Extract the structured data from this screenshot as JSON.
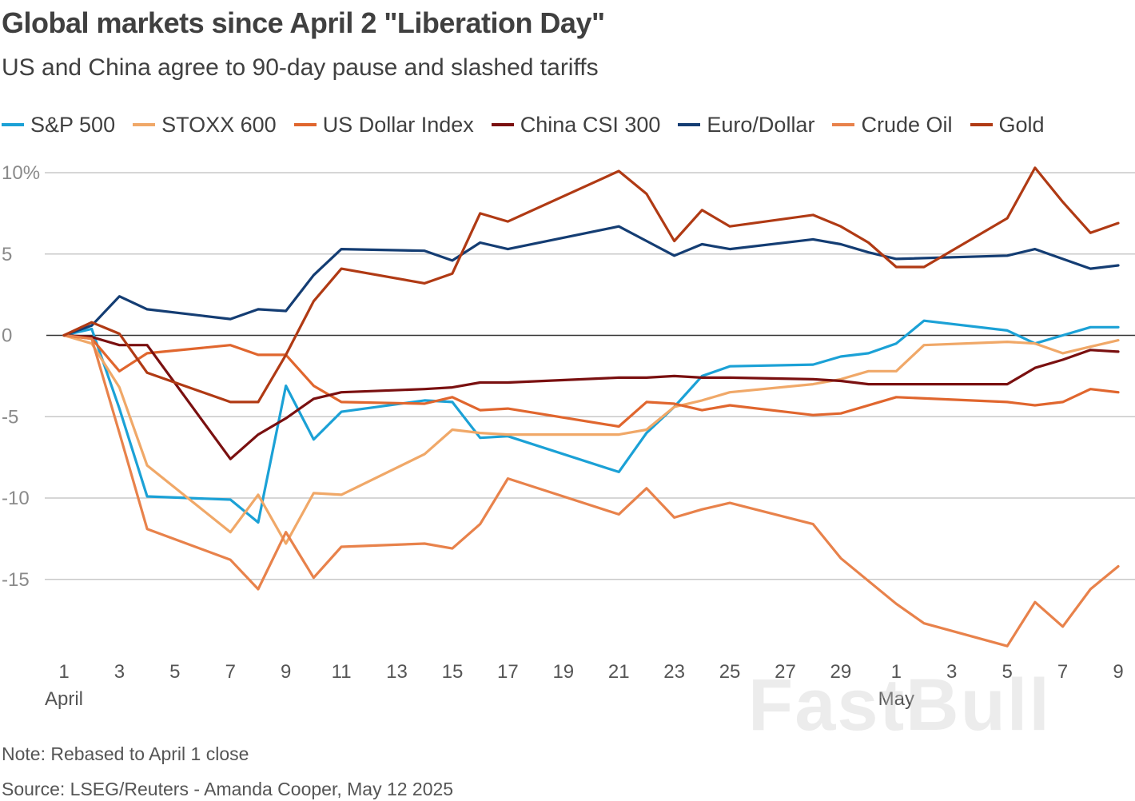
{
  "title": "Global markets since April 2 \"Liberation Day\"",
  "subtitle": "US and China agree to 90-day pause and slashed tariffs",
  "note": "Note: Rebased to April 1 close",
  "source": "Source: LSEG/Reuters - Amanda Cooper, May 12 2025",
  "watermark": "FastBull",
  "chart_data": {
    "type": "line",
    "title": "Global markets since April 2 \"Liberation Day\"",
    "subtitle": "US and China agree to 90-day pause and slashed tariffs",
    "xlabel": "",
    "ylabel": "",
    "ylim": [
      -20,
      10.5
    ],
    "xlim": [
      1,
      39
    ],
    "grid": true,
    "legend_position": "top",
    "y_ticks": [
      {
        "value": 10,
        "label": "10%"
      },
      {
        "value": 5,
        "label": "5"
      },
      {
        "value": 0,
        "label": "0"
      },
      {
        "value": -5,
        "label": "-5"
      },
      {
        "value": -10,
        "label": "-10"
      },
      {
        "value": -15,
        "label": "-15"
      }
    ],
    "x_ticks": [
      {
        "day": 1,
        "label": "1"
      },
      {
        "day": 3,
        "label": "3"
      },
      {
        "day": 5,
        "label": "5"
      },
      {
        "day": 7,
        "label": "7"
      },
      {
        "day": 9,
        "label": "9"
      },
      {
        "day": 11,
        "label": "11"
      },
      {
        "day": 13,
        "label": "13"
      },
      {
        "day": 15,
        "label": "15"
      },
      {
        "day": 17,
        "label": "17"
      },
      {
        "day": 19,
        "label": "19"
      },
      {
        "day": 21,
        "label": "21"
      },
      {
        "day": 23,
        "label": "23"
      },
      {
        "day": 25,
        "label": "25"
      },
      {
        "day": 27,
        "label": "27"
      },
      {
        "day": 29,
        "label": "29"
      },
      {
        "day": 31,
        "label": "1"
      },
      {
        "day": 33,
        "label": "3"
      },
      {
        "day": 35,
        "label": "5"
      },
      {
        "day": 37,
        "label": "7"
      },
      {
        "day": 39,
        "label": "9"
      }
    ],
    "month_labels": [
      {
        "day": 1,
        "label": "April"
      },
      {
        "day": 31,
        "label": "May"
      }
    ],
    "series": [
      {
        "name": "S&P 500",
        "color": "#1ba1d6",
        "points": [
          [
            1,
            0
          ],
          [
            2,
            0.4
          ],
          [
            3,
            -4.5
          ],
          [
            4,
            -9.9
          ],
          [
            7,
            -10.1
          ],
          [
            8,
            -11.5
          ],
          [
            9,
            -3.1
          ],
          [
            10,
            -6.4
          ],
          [
            11,
            -4.7
          ],
          [
            14,
            -4
          ],
          [
            15,
            -4.1
          ],
          [
            16,
            -6.3
          ],
          [
            17,
            -6.2
          ],
          [
            21,
            -8.4
          ],
          [
            22,
            -6
          ],
          [
            23,
            -4.4
          ],
          [
            24,
            -2.5
          ],
          [
            25,
            -1.9
          ],
          [
            28,
            -1.8
          ],
          [
            29,
            -1.3
          ],
          [
            30,
            -1.1
          ],
          [
            31,
            -0.5
          ],
          [
            32,
            0.9
          ],
          [
            35,
            0.3
          ],
          [
            36,
            -0.5
          ],
          [
            37,
            0
          ],
          [
            38,
            0.5
          ],
          [
            39,
            0.5
          ]
        ]
      },
      {
        "name": "STOXX 600",
        "color": "#f0a868",
        "points": [
          [
            1,
            0
          ],
          [
            2,
            -0.5
          ],
          [
            3,
            -3.2
          ],
          [
            4,
            -8
          ],
          [
            7,
            -12.1
          ],
          [
            8,
            -9.8
          ],
          [
            9,
            -12.8
          ],
          [
            10,
            -9.7
          ],
          [
            11,
            -9.8
          ],
          [
            14,
            -7.3
          ],
          [
            15,
            -5.8
          ],
          [
            16,
            -6
          ],
          [
            17,
            -6.1
          ],
          [
            21,
            -6.1
          ],
          [
            22,
            -5.8
          ],
          [
            23,
            -4.4
          ],
          [
            24,
            -4
          ],
          [
            25,
            -3.5
          ],
          [
            28,
            -3
          ],
          [
            29,
            -2.7
          ],
          [
            30,
            -2.2
          ],
          [
            31,
            -2.2
          ],
          [
            32,
            -0.6
          ],
          [
            35,
            -0.4
          ],
          [
            36,
            -0.5
          ],
          [
            37,
            -1.1
          ],
          [
            38,
            -0.7
          ],
          [
            39,
            -0.3
          ]
        ]
      },
      {
        "name": "US Dollar Index",
        "color": "#e0662e",
        "points": [
          [
            1,
            0
          ],
          [
            2,
            -0.2
          ],
          [
            3,
            -2.2
          ],
          [
            4,
            -1.1
          ],
          [
            7,
            -0.6
          ],
          [
            8,
            -1.2
          ],
          [
            9,
            -1.2
          ],
          [
            10,
            -3.1
          ],
          [
            11,
            -4.1
          ],
          [
            14,
            -4.2
          ],
          [
            15,
            -3.8
          ],
          [
            16,
            -4.6
          ],
          [
            17,
            -4.5
          ],
          [
            21,
            -5.6
          ],
          [
            22,
            -4.1
          ],
          [
            23,
            -4.2
          ],
          [
            24,
            -4.6
          ],
          [
            25,
            -4.3
          ],
          [
            28,
            -4.9
          ],
          [
            29,
            -4.8
          ],
          [
            31,
            -3.8
          ],
          [
            35,
            -4.1
          ],
          [
            36,
            -4.3
          ],
          [
            37,
            -4.1
          ],
          [
            38,
            -3.3
          ],
          [
            39,
            -3.5
          ]
        ]
      },
      {
        "name": "China CSI 300",
        "color": "#7a1010",
        "points": [
          [
            1,
            0
          ],
          [
            2,
            -0.1
          ],
          [
            3,
            -0.6
          ],
          [
            4,
            -0.6
          ],
          [
            7,
            -7.6
          ],
          [
            8,
            -6.1
          ],
          [
            9,
            -5.1
          ],
          [
            10,
            -3.9
          ],
          [
            11,
            -3.5
          ],
          [
            14,
            -3.3
          ],
          [
            15,
            -3.2
          ],
          [
            16,
            -2.9
          ],
          [
            17,
            -2.9
          ],
          [
            21,
            -2.6
          ],
          [
            22,
            -2.6
          ],
          [
            23,
            -2.5
          ],
          [
            24,
            -2.6
          ],
          [
            25,
            -2.6
          ],
          [
            28,
            -2.7
          ],
          [
            29,
            -2.8
          ],
          [
            30,
            -3
          ],
          [
            35,
            -3
          ],
          [
            36,
            -2
          ],
          [
            37,
            -1.5
          ],
          [
            38,
            -0.9
          ],
          [
            39,
            -1
          ]
        ]
      },
      {
        "name": "Euro/Dollar",
        "color": "#143d73",
        "points": [
          [
            1,
            0
          ],
          [
            2,
            0.6
          ],
          [
            3,
            2.4
          ],
          [
            4,
            1.6
          ],
          [
            7,
            1
          ],
          [
            8,
            1.6
          ],
          [
            9,
            1.5
          ],
          [
            10,
            3.7
          ],
          [
            11,
            5.3
          ],
          [
            14,
            5.2
          ],
          [
            15,
            4.6
          ],
          [
            16,
            5.7
          ],
          [
            17,
            5.3
          ],
          [
            21,
            6.7
          ],
          [
            22,
            5.8
          ],
          [
            23,
            4.9
          ],
          [
            24,
            5.6
          ],
          [
            25,
            5.3
          ],
          [
            28,
            5.9
          ],
          [
            29,
            5.6
          ],
          [
            30,
            5.1
          ],
          [
            31,
            4.7
          ],
          [
            35,
            4.9
          ],
          [
            36,
            5.3
          ],
          [
            37,
            4.7
          ],
          [
            38,
            4.1
          ],
          [
            39,
            4.3
          ]
        ]
      },
      {
        "name": "Crude Oil",
        "color": "#e8824b",
        "points": [
          [
            1,
            0
          ],
          [
            2,
            -0.2
          ],
          [
            3,
            -6
          ],
          [
            4,
            -11.9
          ],
          [
            7,
            -13.8
          ],
          [
            8,
            -15.6
          ],
          [
            9,
            -12.1
          ],
          [
            10,
            -14.9
          ],
          [
            11,
            -13
          ],
          [
            14,
            -12.8
          ],
          [
            15,
            -13.1
          ],
          [
            16,
            -11.6
          ],
          [
            17,
            -8.8
          ],
          [
            21,
            -11
          ],
          [
            22,
            -9.4
          ],
          [
            23,
            -11.2
          ],
          [
            24,
            -10.7
          ],
          [
            25,
            -10.3
          ],
          [
            28,
            -11.6
          ],
          [
            29,
            -13.7
          ],
          [
            30,
            -15.1
          ],
          [
            31,
            -16.5
          ],
          [
            32,
            -17.7
          ],
          [
            35,
            -19.1
          ],
          [
            36,
            -16.4
          ],
          [
            37,
            -17.9
          ],
          [
            38,
            -15.6
          ],
          [
            39,
            -14.2
          ]
        ]
      },
      {
        "name": "Gold",
        "color": "#b03a14",
        "points": [
          [
            1,
            0
          ],
          [
            2,
            0.8
          ],
          [
            3,
            0.1
          ],
          [
            4,
            -2.3
          ],
          [
            7,
            -4.1
          ],
          [
            8,
            -4.1
          ],
          [
            9,
            -1.2
          ],
          [
            10,
            2.1
          ],
          [
            11,
            4.1
          ],
          [
            14,
            3.2
          ],
          [
            15,
            3.8
          ],
          [
            16,
            7.5
          ],
          [
            17,
            7
          ],
          [
            21,
            10.1
          ],
          [
            22,
            8.7
          ],
          [
            23,
            5.8
          ],
          [
            24,
            7.7
          ],
          [
            25,
            6.7
          ],
          [
            28,
            7.4
          ],
          [
            29,
            6.7
          ],
          [
            30,
            5.7
          ],
          [
            31,
            4.2
          ],
          [
            32,
            4.2
          ],
          [
            35,
            7.2
          ],
          [
            36,
            10.3
          ],
          [
            37,
            8.2
          ],
          [
            38,
            6.3
          ],
          [
            39,
            6.9
          ]
        ]
      }
    ]
  }
}
